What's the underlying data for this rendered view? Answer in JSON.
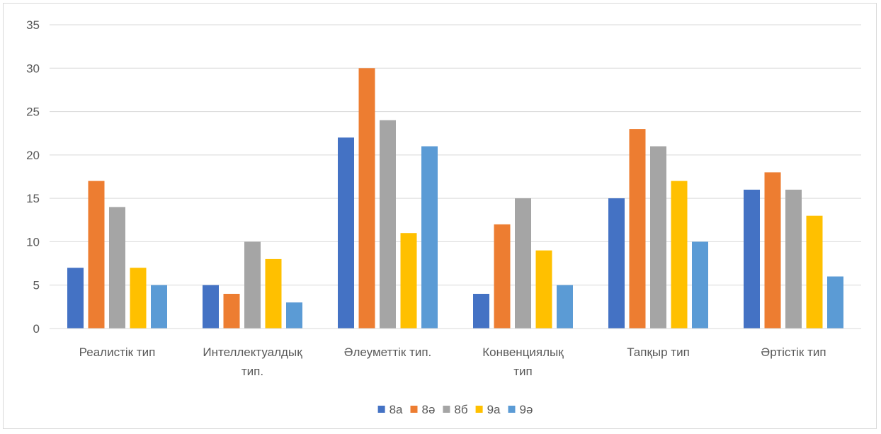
{
  "chart_data": {
    "type": "bar",
    "title": "",
    "xlabel": "",
    "ylabel": "",
    "ylim": [
      0,
      35
    ],
    "yticks": [
      0,
      5,
      10,
      15,
      20,
      25,
      30,
      35
    ],
    "grid": true,
    "legend_position": "bottom",
    "categories": [
      "Реалистік тип",
      "Интеллектуалдық тип.",
      "Әлеуметтік тип.",
      "Конвенциялық тип",
      "Тапқыр тип",
      "Әртістік тип"
    ],
    "category_lines": [
      [
        "Реалистік тип"
      ],
      [
        "Интеллектуалдық",
        "тип."
      ],
      [
        "Әлеуметтік тип."
      ],
      [
        "Конвенциялық",
        "тип"
      ],
      [
        "Тапқыр тип"
      ],
      [
        "Әртістік тип"
      ]
    ],
    "series": [
      {
        "name": "8а",
        "color": "#4472C4",
        "values": [
          7,
          5,
          22,
          4,
          15,
          16
        ]
      },
      {
        "name": "8ә",
        "color": "#ED7D31",
        "values": [
          17,
          4,
          30,
          12,
          23,
          18
        ]
      },
      {
        "name": "8б",
        "color": "#A5A5A5",
        "values": [
          14,
          10,
          24,
          15,
          21,
          16
        ]
      },
      {
        "name": "9а",
        "color": "#FFC000",
        "values": [
          7,
          8,
          11,
          9,
          17,
          13
        ]
      },
      {
        "name": "9ә",
        "color": "#5B9BD5",
        "values": [
          5,
          3,
          21,
          5,
          10,
          6
        ]
      }
    ]
  }
}
